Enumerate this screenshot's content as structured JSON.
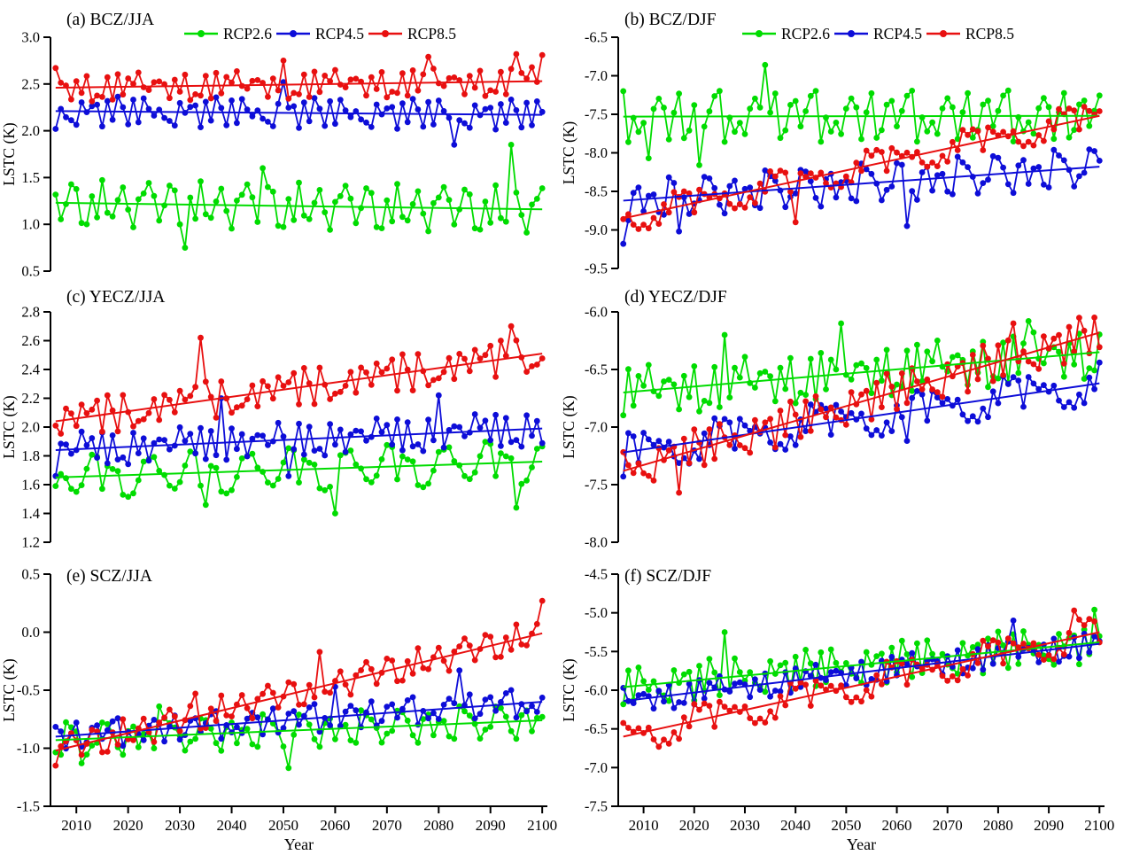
{
  "figure": {
    "ylabel": "LSTC (K)",
    "xlabel": "Year",
    "legend_labels": [
      "RCP2.6",
      "RCP4.5",
      "RCP8.5"
    ],
    "colors": {
      "RCP2.6": "#00dc00",
      "RCP4.5": "#0d0dd8",
      "RCP8.5": "#e81010"
    },
    "axis_color": "#000000",
    "background": "#ffffff"
  },
  "chart_data": {
    "type": "line",
    "x_start": 2006,
    "x_end": 2100,
    "x_step": 1,
    "x_axis_range": [
      2005,
      2101
    ],
    "xticks": [
      2010,
      2020,
      2030,
      2040,
      2050,
      2060,
      2070,
      2080,
      2090,
      2100
    ],
    "xlabel": "Year",
    "ylabel": "LSTC (K)",
    "legend_position": "top-center, panels a and b only",
    "grid": false,
    "noise_pattern": [
      0.35,
      -0.55,
      0.8,
      -0.25,
      -0.9,
      0.45,
      1.0,
      -0.7,
      0.15,
      0.6,
      -1.0,
      0.3,
      0.9,
      -0.4,
      -0.05,
      0.7,
      -0.85,
      0.2,
      -0.6
    ],
    "panels": [
      {
        "id": "a",
        "title": "(a) BCZ/JJA",
        "legend": true,
        "show_x_axis": false,
        "ylim": [
          0.5,
          3.0
        ],
        "yticks": [
          0.5,
          1.0,
          1.5,
          2.0,
          2.5,
          3.0
        ],
        "series": [
          {
            "name": "RCP2.6",
            "trend": [
              1.23,
              1.16
            ],
            "noise_amp": 0.25,
            "stride": 7,
            "phase": 0,
            "extremes": {
              "2031": 0.75,
              "2046": 1.6,
              "2094": 1.85
            }
          },
          {
            "name": "RCP4.5",
            "trend": [
              2.21,
              2.17
            ],
            "noise_amp": 0.16,
            "stride": 5,
            "phase": 3,
            "extremes": {
              "2006": 2.02,
              "2050": 2.52,
              "2083": 1.85
            }
          },
          {
            "name": "RCP8.5",
            "trend": [
              2.46,
              2.53
            ],
            "noise_amp": 0.15,
            "stride": 8,
            "phase": 11,
            "extremes": {
              "2006": 2.67,
              "2050": 2.75,
              "2078": 2.79,
              "2095": 2.82,
              "2100": 2.81
            }
          }
        ]
      },
      {
        "id": "b",
        "title": "(b) BCZ/DJF",
        "legend": true,
        "show_x_axis": false,
        "ylim": [
          -9.5,
          -6.5
        ],
        "yticks": [
          -9.5,
          -9.0,
          -8.5,
          -8.0,
          -7.5,
          -7.0,
          -6.5
        ],
        "series": [
          {
            "name": "RCP2.6",
            "trend": [
              -7.53,
              -7.52
            ],
            "noise_amp": 0.33,
            "stride": 4,
            "phase": 6,
            "extremes": {
              "2011": -8.07,
              "2021": -8.16,
              "2034": -6.86
            }
          },
          {
            "name": "RCP4.5",
            "trend": [
              -8.62,
              -8.18
            ],
            "noise_amp": 0.26,
            "stride": 9,
            "phase": 1,
            "extremes": {
              "2006": -9.18,
              "2017": -9.02,
              "2062": -8.95
            }
          },
          {
            "name": "RCP8.5",
            "trend": [
              -8.85,
              -7.52
            ],
            "noise_amp": 0.2,
            "stride": 3,
            "phase": 14,
            "extremes": {
              "2040": -8.9
            }
          }
        ]
      },
      {
        "id": "c",
        "title": "(c) YECZ/JJA",
        "legend": false,
        "show_x_axis": false,
        "ylim": [
          1.2,
          2.8
        ],
        "yticks": [
          1.2,
          1.4,
          1.6,
          1.8,
          2.0,
          2.2,
          2.4,
          2.6,
          2.8
        ],
        "series": [
          {
            "name": "RCP2.6",
            "trend": [
              1.65,
              1.76
            ],
            "noise_amp": 0.15,
            "stride": 6,
            "phase": 2,
            "extremes": {
              "2006": 1.59,
              "2035": 1.46,
              "2060": 1.4,
              "2095": 1.44
            }
          },
          {
            "name": "RCP4.5",
            "trend": [
              1.84,
              1.99
            ],
            "noise_amp": 0.12,
            "stride": 11,
            "phase": 8,
            "extremes": {
              "2006": 1.66,
              "2038": 2.2,
              "2051": 1.66,
              "2080": 2.22
            }
          },
          {
            "name": "RCP8.5",
            "trend": [
              2.04,
              2.51
            ],
            "noise_amp": 0.13,
            "stride": 2,
            "phase": 5,
            "extremes": {
              "2006": 2.01,
              "2034": 2.62,
              "2094": 2.7
            }
          }
        ]
      },
      {
        "id": "d",
        "title": "(d) YECZ/DJF",
        "legend": false,
        "show_x_axis": false,
        "ylim": [
          -8.0,
          -6.0
        ],
        "yticks": [
          -8.0,
          -7.5,
          -7.0,
          -6.5,
          -6.0
        ],
        "series": [
          {
            "name": "RCP2.6",
            "trend": [
              -6.7,
              -6.35
            ],
            "noise_amp": 0.22,
            "stride": 8,
            "phase": 4,
            "extremes": {
              "2026": -6.2,
              "2049": -6.1,
              "2086": -6.08
            }
          },
          {
            "name": "RCP4.5",
            "trend": [
              -7.22,
              -6.62
            ],
            "noise_amp": 0.18,
            "stride": 3,
            "phase": 9,
            "extremes": {
              "2006": -7.43,
              "2062": -7.12
            }
          },
          {
            "name": "RCP8.5",
            "trend": [
              -7.38,
              -6.18
            ],
            "noise_amp": 0.18,
            "stride": 5,
            "phase": 12,
            "extremes": {
              "2017": -7.57,
              "2083": -6.1
            }
          }
        ]
      },
      {
        "id": "e",
        "title": "(e) SCZ/JJA",
        "legend": false,
        "show_x_axis": true,
        "ylim": [
          -1.5,
          0.5
        ],
        "yticks": [
          -1.5,
          -1.0,
          -0.5,
          0.0,
          0.5
        ],
        "series": [
          {
            "name": "RCP2.6",
            "trend": [
              -0.93,
              -0.76
            ],
            "noise_amp": 0.15,
            "stride": 9,
            "phase": 7,
            "extremes": {
              "2011": -1.13,
              "2026": -0.64,
              "2051": -1.17
            }
          },
          {
            "name": "RCP4.5",
            "trend": [
              -0.9,
              -0.6
            ],
            "noise_amp": 0.12,
            "stride": 4,
            "phase": 15,
            "extremes": {
              "2060": -0.47,
              "2084": -0.33
            }
          },
          {
            "name": "RCP8.5",
            "trend": [
              -1.02,
              -0.01
            ],
            "noise_amp": 0.13,
            "stride": 7,
            "phase": 10,
            "extremes": {
              "2033": -0.53,
              "2057": -0.17,
              "2100": 0.27
            }
          }
        ]
      },
      {
        "id": "f",
        "title": "(f) SCZ/DJF",
        "legend": false,
        "show_x_axis": true,
        "ylim": [
          -7.5,
          -4.5
        ],
        "yticks": [
          -7.5,
          -7.0,
          -6.5,
          -6.0,
          -5.5,
          -5.0,
          -4.5
        ],
        "series": [
          {
            "name": "RCP2.6",
            "trend": [
              -5.96,
              -5.38
            ],
            "noise_amp": 0.26,
            "stride": 5,
            "phase": 16,
            "extremes": {
              "2026": -5.25,
              "2099": -4.96
            }
          },
          {
            "name": "RCP4.5",
            "trend": [
              -6.14,
              -5.4
            ],
            "noise_amp": 0.17,
            "stride": 8,
            "phase": 6,
            "extremes": {
              "2083": -5.1
            }
          },
          {
            "name": "RCP8.5",
            "trend": [
              -6.6,
              -5.25
            ],
            "noise_amp": 0.22,
            "stride": 3,
            "phase": 2,
            "extremes": {
              "2013": -6.73,
              "2095": -4.97
            }
          }
        ]
      }
    ]
  }
}
